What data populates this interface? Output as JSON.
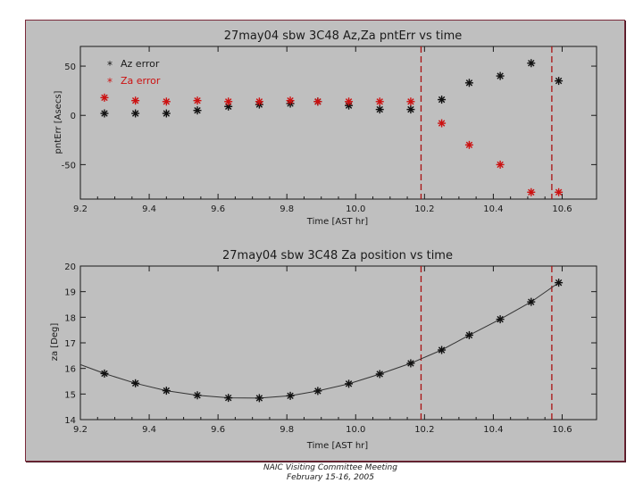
{
  "footer": {
    "line1": "NAIC Visiting Committee Meeting",
    "line2": "February 15-16, 2005"
  },
  "colors": {
    "background": "#bfbfbf",
    "axis": "#1a1a1a",
    "series_black": "#111111",
    "series_red": "#cc1111",
    "marker_line": "#aa1111"
  },
  "chart_data": [
    {
      "type": "scatter",
      "title": "27may04 sbw 3C48 Az,Za pntErr vs time",
      "xlabel": "Time [AST hr]",
      "ylabel": "pntErr [Asecs]",
      "xlim": [
        9.2,
        10.7
      ],
      "ylim": [
        -85,
        70
      ],
      "xticks": [
        "9.2",
        "9.4",
        "9.6",
        "9.8",
        "10.0",
        "10.2",
        "10.4",
        "10.6"
      ],
      "xtick_values": [
        9.2,
        9.4,
        9.6,
        9.8,
        10.0,
        10.2,
        10.4,
        10.6
      ],
      "yticks": [
        "-50",
        "0",
        "50"
      ],
      "ytick_values": [
        -50,
        0,
        50
      ],
      "legend_position": "top-left",
      "vlines": [
        10.19,
        10.57
      ],
      "series": [
        {
          "name": "Az error",
          "color": "#111111",
          "x": [
            9.27,
            9.36,
            9.45,
            9.54,
            9.63,
            9.72,
            9.81,
            9.89,
            9.98,
            10.07,
            10.16,
            10.25,
            10.33,
            10.42,
            10.51,
            10.59
          ],
          "y": [
            2,
            2,
            2,
            5,
            9,
            11,
            12,
            14,
            10,
            6,
            6,
            16,
            33,
            40,
            53,
            35
          ]
        },
        {
          "name": "Za error",
          "color": "#cc1111",
          "x": [
            9.27,
            9.36,
            9.45,
            9.54,
            9.63,
            9.72,
            9.81,
            9.89,
            9.98,
            10.07,
            10.16,
            10.25,
            10.33,
            10.42,
            10.51,
            10.59
          ],
          "y": [
            18,
            15,
            14,
            15,
            14,
            14,
            15,
            14,
            14,
            14,
            14,
            -8,
            -30,
            -50,
            -78,
            -78
          ]
        }
      ]
    },
    {
      "type": "line",
      "title": "27may04 sbw 3C48 Za position vs time",
      "xlabel": "Time [AST hr]",
      "ylabel": "za [Deg]",
      "xlim": [
        9.2,
        10.7
      ],
      "ylim": [
        14,
        20
      ],
      "xticks": [
        "9.2",
        "9.4",
        "9.6",
        "9.8",
        "10.0",
        "10.2",
        "10.4",
        "10.6"
      ],
      "xtick_values": [
        9.2,
        9.4,
        9.6,
        9.8,
        10.0,
        10.2,
        10.4,
        10.6
      ],
      "yticks": [
        "14",
        "15",
        "16",
        "17",
        "18",
        "19",
        "20"
      ],
      "ytick_values": [
        14,
        15,
        16,
        17,
        18,
        19,
        20
      ],
      "vlines": [
        10.19,
        10.57
      ],
      "curve": {
        "x": [
          9.2,
          9.27,
          9.36,
          9.45,
          9.54,
          9.63,
          9.72,
          9.81,
          9.89,
          9.98,
          10.07,
          10.16,
          10.25,
          10.33,
          10.42,
          10.51,
          10.59
        ],
        "y": [
          16.15,
          15.8,
          15.42,
          15.13,
          14.95,
          14.85,
          14.84,
          14.93,
          15.12,
          15.4,
          15.78,
          16.2,
          16.72,
          17.3,
          17.92,
          18.6,
          19.35
        ]
      },
      "series": [
        {
          "name": "Za position",
          "color": "#111111",
          "x": [
            9.27,
            9.36,
            9.45,
            9.54,
            9.63,
            9.72,
            9.81,
            9.89,
            9.98,
            10.07,
            10.16,
            10.25,
            10.33,
            10.42,
            10.51,
            10.59
          ],
          "y": [
            15.8,
            15.42,
            15.13,
            14.95,
            14.85,
            14.84,
            14.93,
            15.12,
            15.4,
            15.78,
            16.2,
            16.72,
            17.3,
            17.92,
            18.6,
            19.35
          ]
        }
      ]
    }
  ]
}
